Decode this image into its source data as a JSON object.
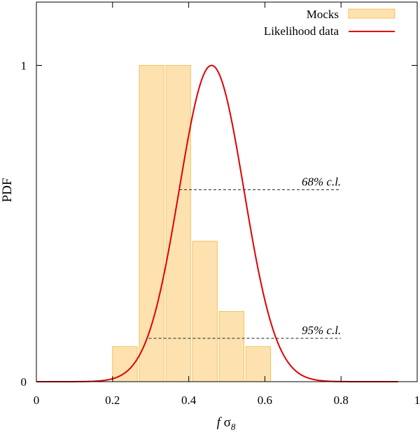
{
  "chart_data": {
    "type": "bar",
    "xlabel_f": "f",
    "xlabel_sigma": "σ",
    "xlabel_sub": "8",
    "ylabel": "PDF",
    "xlim": [
      0,
      1
    ],
    "ylim": [
      0,
      1.2
    ],
    "x_ticks": [
      {
        "value": 0,
        "label": "0"
      },
      {
        "value": 0.2,
        "label": "0.2"
      },
      {
        "value": 0.4,
        "label": "0.4"
      },
      {
        "value": 0.6,
        "label": "0.6"
      },
      {
        "value": 0.8,
        "label": "0.8"
      },
      {
        "value": 1,
        "label": "1"
      }
    ],
    "y_ticks": [
      {
        "value": 0,
        "label": "0"
      },
      {
        "value": 1,
        "label": "1"
      }
    ],
    "series": [
      {
        "name": "Mocks",
        "kind": "histogram",
        "color": "#fde2b0",
        "edge_color": "#f2c25e",
        "bins": [
          {
            "x0": 0.2,
            "x1": 0.265,
            "value": 0.111
          },
          {
            "x0": 0.27,
            "x1": 0.335,
            "value": 1.0
          },
          {
            "x0": 0.34,
            "x1": 0.405,
            "value": 1.0
          },
          {
            "x0": 0.41,
            "x1": 0.475,
            "value": 0.444
          },
          {
            "x0": 0.48,
            "x1": 0.545,
            "value": 0.222
          },
          {
            "x0": 0.55,
            "x1": 0.615,
            "value": 0.111
          }
        ]
      },
      {
        "name": "Likelihood data",
        "kind": "line",
        "color": "#e00000",
        "gaussian": {
          "mean": 0.46,
          "sigma": 0.085,
          "peak": 1.0
        },
        "x_range": [
          0,
          0.95
        ]
      }
    ],
    "annotations": [
      {
        "text": "68% c.l.",
        "y": 0.607,
        "x_start": 0.375,
        "x_end": 0.8
      },
      {
        "text": "95% c.l.",
        "y": 0.137,
        "x_start": 0.295,
        "x_end": 0.8
      }
    ],
    "legend_position": "top-right"
  }
}
